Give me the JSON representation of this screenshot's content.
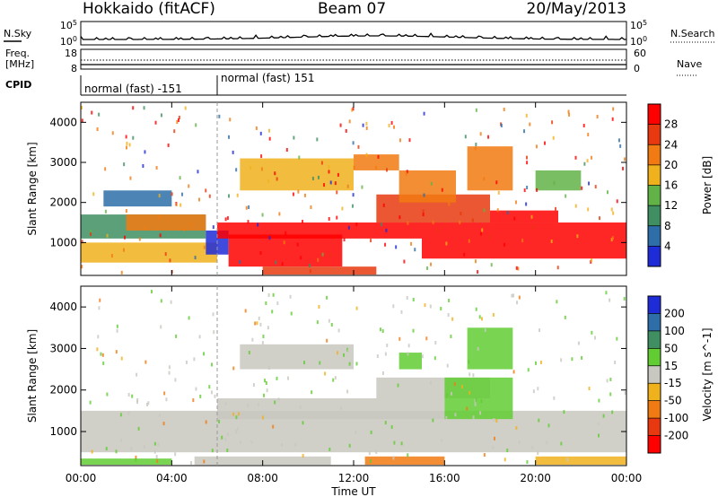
{
  "header": {
    "radar": "Hokkaido (fitACF)",
    "beam": "Beam 07",
    "date": "20/May/2013"
  },
  "aux": {
    "nsky_label": "N.Sky",
    "nsearch_label": "N.Search",
    "freq_label_1": "Freq.",
    "freq_label_2": "[MHz]",
    "nave_label": "Nave",
    "cpid_label": "CPID",
    "nsky_ticks": [
      "10^5",
      "10^0"
    ],
    "nsearch_ticks": [
      "10^5",
      "10^0"
    ],
    "freq_ticks": [
      "18",
      "8"
    ],
    "nave_ticks": [
      "60",
      "0"
    ],
    "cpid_segments": [
      {
        "label": "normal (fast) -151",
        "start_h": 0,
        "end_h": 6
      },
      {
        "label": "normal (fast) 151",
        "start_h": 6,
        "end_h": 24
      }
    ]
  },
  "chart_data": [
    {
      "type": "heatmap",
      "title": "",
      "quantity": "Power",
      "xlabel": "Time UT",
      "ylabel": "Slant Range [km]",
      "colorbar_label": "Power [dB]",
      "colorbar_ticks": [
        "4",
        "8",
        "12",
        "16",
        "20",
        "24",
        "28"
      ],
      "colorbar_colors": [
        "#1e2cd8",
        "#2d6ea8",
        "#3f8f62",
        "#62b347",
        "#f0b21c",
        "#f27a12",
        "#e8380f",
        "#ff0000"
      ],
      "xlim": [
        0,
        24
      ],
      "ylim": [
        180,
        4500
      ],
      "x_ticks": [
        "00:00",
        "04:00",
        "08:00",
        "12:00",
        "16:00",
        "20:00",
        "00:00"
      ],
      "y_ticks": [
        "1000",
        "2000",
        "3000",
        "4000"
      ],
      "regions": [
        {
          "t0": 0.0,
          "t1": 6.0,
          "r0": 500,
          "r1": 1000,
          "color": "#f0b21c"
        },
        {
          "t0": 0.0,
          "t1": 5.5,
          "r0": 1100,
          "r1": 1700,
          "color": "#3f8f62"
        },
        {
          "t0": 2.0,
          "t1": 5.5,
          "r0": 1300,
          "r1": 1700,
          "color": "#f27a12"
        },
        {
          "t0": 5.5,
          "t1": 6.5,
          "r0": 700,
          "r1": 1300,
          "color": "#1e2cd8"
        },
        {
          "t0": 6.5,
          "t1": 11.5,
          "r0": 400,
          "r1": 1200,
          "color": "#ff0000"
        },
        {
          "t0": 6.0,
          "t1": 15.0,
          "r0": 1100,
          "r1": 1500,
          "color": "#ff0000"
        },
        {
          "t0": 15.0,
          "t1": 24.0,
          "r0": 600,
          "r1": 1500,
          "color": "#ff0000"
        },
        {
          "t0": 13.0,
          "t1": 18.0,
          "r0": 1500,
          "r1": 2200,
          "color": "#e8380f"
        },
        {
          "t0": 18.0,
          "t1": 21.0,
          "r0": 1500,
          "r1": 1800,
          "color": "#ff0000"
        },
        {
          "t0": 17.0,
          "t1": 19.0,
          "r0": 2300,
          "r1": 3400,
          "color": "#f27a12"
        },
        {
          "t0": 7.0,
          "t1": 12.0,
          "r0": 2300,
          "r1": 3100,
          "color": "#f0b21c"
        },
        {
          "t0": 12.0,
          "t1": 14.0,
          "r0": 2800,
          "r1": 3200,
          "color": "#f27a12"
        },
        {
          "t0": 8.0,
          "t1": 13.0,
          "r0": 200,
          "r1": 400,
          "color": "#e8380f"
        },
        {
          "t0": 14.0,
          "t1": 16.5,
          "r0": 2000,
          "r1": 2800,
          "color": "#f27a12"
        },
        {
          "t0": 1.0,
          "t1": 4.0,
          "r0": 1900,
          "r1": 2300,
          "color": "#2d6ea8"
        },
        {
          "t0": 20.0,
          "t1": 22.0,
          "r0": 2300,
          "r1": 2800,
          "color": "#62b347"
        }
      ]
    },
    {
      "type": "heatmap",
      "title": "",
      "quantity": "Velocity",
      "xlabel": "Time UT",
      "ylabel": "Slant Range [km]",
      "colorbar_label": "Velocity [m s^-1]",
      "colorbar_ticks": [
        "200",
        "100",
        "50",
        "15",
        "-15",
        "-50",
        "-100",
        "-200"
      ],
      "colorbar_colors": [
        "#1e2cd8",
        "#2d6ea8",
        "#3f8f62",
        "#62cc33",
        "#c8c8c0",
        "#f0b21c",
        "#f27a12",
        "#e8380f",
        "#ff0000"
      ],
      "xlim": [
        0,
        24
      ],
      "ylim": [
        180,
        4500
      ],
      "x_ticks": [
        "00:00",
        "04:00",
        "08:00",
        "12:00",
        "16:00",
        "20:00",
        "00:00"
      ],
      "y_ticks": [
        "1000",
        "2000",
        "3000",
        "4000"
      ],
      "regions": [
        {
          "t0": 0.0,
          "t1": 24.0,
          "r0": 500,
          "r1": 1500,
          "color": "#c8c8c0"
        },
        {
          "t0": 6.0,
          "t1": 16.0,
          "r0": 1300,
          "r1": 1800,
          "color": "#c8c8c0"
        },
        {
          "t0": 13.0,
          "t1": 18.0,
          "r0": 1800,
          "r1": 2300,
          "color": "#c8c8c0"
        },
        {
          "t0": 16.0,
          "t1": 19.0,
          "r0": 1300,
          "r1": 2300,
          "color": "#62cc33"
        },
        {
          "t0": 17.0,
          "t1": 19.0,
          "r0": 2500,
          "r1": 3500,
          "color": "#62cc33"
        },
        {
          "t0": 14.0,
          "t1": 15.0,
          "r0": 2500,
          "r1": 2900,
          "color": "#62cc33"
        },
        {
          "t0": 12.5,
          "t1": 16.0,
          "r0": 200,
          "r1": 400,
          "color": "#f27a12"
        },
        {
          "t0": 0.0,
          "t1": 4.0,
          "r0": 200,
          "r1": 350,
          "color": "#62cc33"
        },
        {
          "t0": 7.0,
          "t1": 12.0,
          "r0": 2500,
          "r1": 3100,
          "color": "#c8c8c0"
        },
        {
          "t0": 5.0,
          "t1": 11.0,
          "r0": 200,
          "r1": 400,
          "color": "#c8c8c0"
        },
        {
          "t0": 20.0,
          "t1": 24.0,
          "r0": 200,
          "r1": 400,
          "color": "#f0b21c"
        }
      ]
    }
  ]
}
